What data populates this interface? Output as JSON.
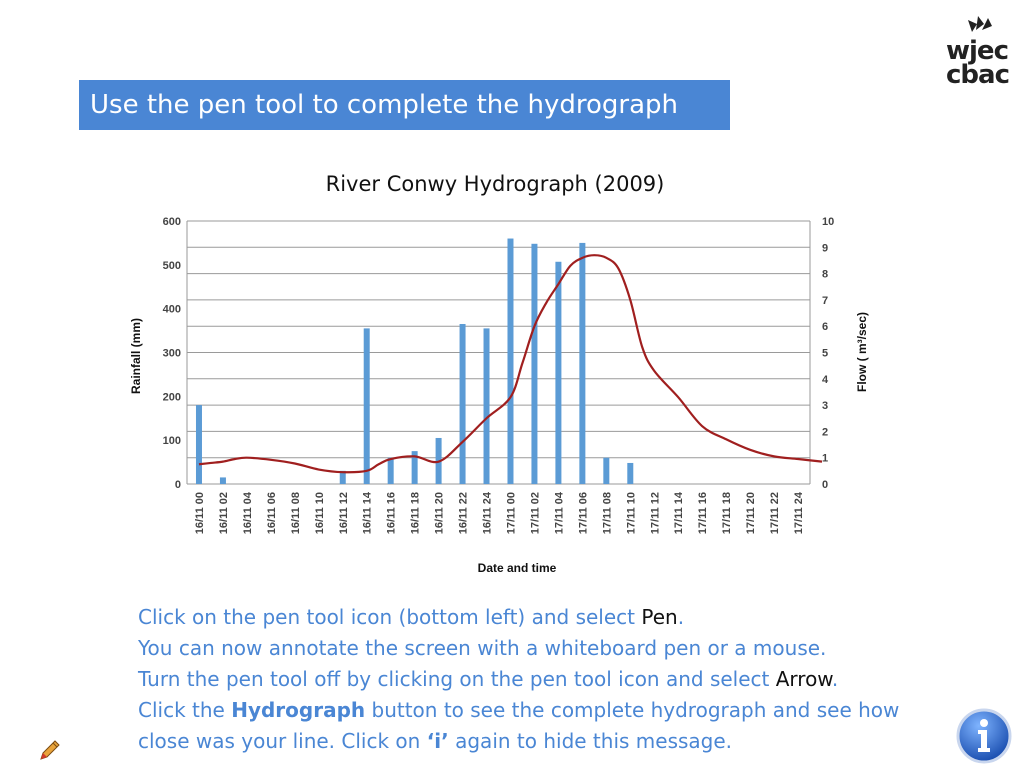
{
  "header": {
    "title": "Use the pen tool to complete the hydrograph"
  },
  "logo": {
    "line1": "wjec",
    "line2": "cbac",
    "icon": "open-book-icon"
  },
  "chart_data": {
    "type": "bar-line",
    "title": "River Conwy Hydrograph (2009)",
    "xlabel": "Date and time",
    "ylabel_left": "Rainfall (mm)",
    "ylabel_right": "Flow ( m³/sec)",
    "ylim_left": [
      0,
      600
    ],
    "ylim_right": [
      0,
      10
    ],
    "yticks_left": [
      "0",
      "100",
      "200",
      "300",
      "400",
      "500",
      "600"
    ],
    "yticks_right": [
      "0",
      "1",
      "2",
      "3",
      "4",
      "5",
      "6",
      "7",
      "8",
      "9",
      "10"
    ],
    "grid": true,
    "categories": [
      "16/11 00",
      "16/11 02",
      "16/11 04",
      "16/11 06",
      "16/11 08",
      "16/11 10",
      "16/11 12",
      "16/11 14",
      "16/11 16",
      "16/11 18",
      "16/11 20",
      "16/11 22",
      "16/11 24",
      "17/11 00",
      "17/11 02",
      "17/11 04",
      "17/11 06",
      "17/11 08",
      "17/11 10",
      "17/11 12",
      "17/11 14",
      "17/11 16",
      "17/11 18",
      "17/11 20",
      "17/11 22",
      "17/11 24"
    ],
    "rainfall": [
      180,
      15,
      0,
      0,
      0,
      0,
      30,
      355,
      60,
      75,
      105,
      365,
      355,
      560,
      548,
      507,
      550,
      60,
      48,
      0,
      0,
      0,
      0,
      0,
      0,
      0
    ],
    "flow": {
      "x": [
        0,
        0.5,
        1,
        1.5,
        2,
        3,
        4,
        5,
        6,
        7,
        7.5,
        8,
        9,
        10,
        11,
        12,
        13,
        13.5,
        14,
        14.5,
        15,
        15.5,
        16,
        16.5,
        17,
        17.5,
        18,
        18.5,
        19,
        20,
        21,
        22,
        23,
        24,
        25,
        26
      ],
      "y": [
        0.75,
        0.8,
        0.85,
        0.95,
        1.0,
        0.92,
        0.78,
        0.55,
        0.45,
        0.5,
        0.75,
        0.95,
        1.05,
        0.85,
        1.6,
        2.5,
        3.3,
        4.6,
        6.0,
        6.9,
        7.6,
        8.3,
        8.6,
        8.7,
        8.6,
        8.2,
        7.0,
        5.2,
        4.3,
        3.3,
        2.2,
        1.7,
        1.3,
        1.05,
        0.95,
        0.85
      ]
    },
    "bar_color": "#5b9bd5",
    "line_color": "#a01f1f"
  },
  "instructions": {
    "l1a": "Click on the pen tool icon (bottom left) and select ",
    "l1b": "Pen",
    "l1c": ".",
    "l2": "You can now annotate the screen with a whiteboard pen or a mouse.",
    "l3a": "Turn the pen tool off by clicking on the pen tool icon and select ",
    "l3b": "Arrow",
    "l3c": ".",
    "l4a": "Click the ",
    "l4b": "Hydrograph",
    "l4c": " button to see the complete hydrograph and see how",
    "l5a": "close was your line.  Click on ",
    "l5b": "‘i’",
    "l5c": " again to hide this message."
  },
  "toolbar": {
    "pen_icon": "pen-tool-icon",
    "info_icon": "info-icon"
  }
}
